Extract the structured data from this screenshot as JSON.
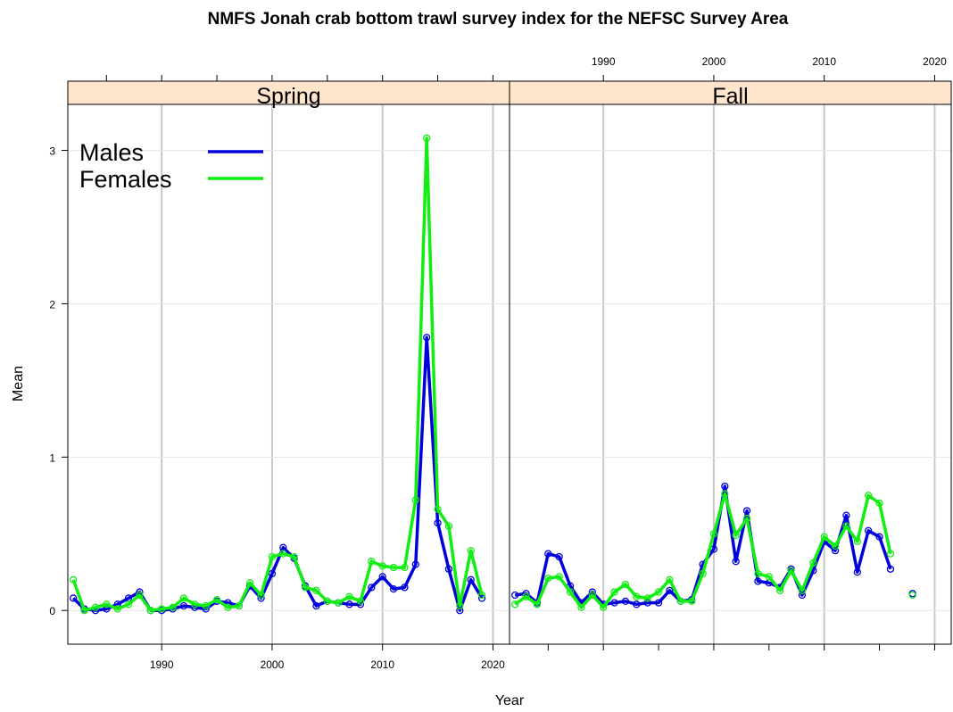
{
  "chart_data": {
    "type": "line",
    "title": "NMFS Jonah crab bottom trawl survey index for the NEFSC Survey Area",
    "xlabel": "Year",
    "ylabel": "Mean",
    "xlim": [
      1981.5,
      2021.5
    ],
    "ylim": [
      -0.22,
      3.3
    ],
    "x_ticks": [
      1990,
      2000,
      2010,
      2020
    ],
    "y_ticks": [
      0,
      1,
      2,
      3
    ],
    "grid": true,
    "legend_position": "top-left",
    "series_styles": [
      {
        "name": "Males",
        "color": "#0000dd"
      },
      {
        "name": "Females",
        "color": "#11ee11"
      }
    ],
    "panels": [
      {
        "label": "Spring",
        "x": [
          1982,
          1983,
          1984,
          1985,
          1986,
          1987,
          1988,
          1989,
          1990,
          1991,
          1992,
          1993,
          1994,
          1995,
          1996,
          1997,
          1998,
          1999,
          2000,
          2001,
          2002,
          2003,
          2004,
          2005,
          2006,
          2007,
          2008,
          2009,
          2010,
          2011,
          2012,
          2013,
          2014,
          2015,
          2016,
          2017,
          2018,
          2019
        ],
        "series": [
          {
            "name": "Males",
            "values": [
              0.08,
              0.01,
              0.0,
              0.01,
              0.04,
              0.08,
              0.12,
              0.0,
              0.0,
              0.01,
              0.03,
              0.02,
              0.01,
              0.06,
              0.05,
              0.03,
              0.16,
              0.08,
              0.24,
              0.41,
              0.34,
              0.16,
              0.03,
              0.06,
              0.05,
              0.04,
              0.04,
              0.15,
              0.22,
              0.14,
              0.15,
              0.3,
              1.78,
              0.57,
              0.27,
              0.0,
              0.2,
              0.08
            ]
          },
          {
            "name": "Females",
            "values": [
              0.2,
              0.0,
              0.02,
              0.04,
              0.01,
              0.04,
              0.1,
              0.0,
              0.01,
              0.02,
              0.08,
              0.04,
              0.03,
              0.07,
              0.02,
              0.03,
              0.18,
              0.1,
              0.35,
              0.37,
              0.35,
              0.15,
              0.13,
              0.06,
              0.05,
              0.09,
              0.06,
              0.32,
              0.29,
              0.28,
              0.28,
              0.72,
              3.08,
              0.66,
              0.55,
              0.03,
              0.39,
              0.1
            ]
          }
        ]
      },
      {
        "label": "Fall",
        "x": [
          1982,
          1983,
          1984,
          1985,
          1986,
          1987,
          1988,
          1989,
          1990,
          1991,
          1992,
          1993,
          1994,
          1995,
          1996,
          1997,
          1998,
          1999,
          2000,
          2001,
          2002,
          2003,
          2004,
          2005,
          2006,
          2007,
          2008,
          2009,
          2010,
          2011,
          2012,
          2013,
          2014,
          2015,
          2016,
          2018
        ],
        "series": [
          {
            "name": "Males",
            "values": [
              0.1,
              0.11,
              0.05,
              0.37,
              0.35,
              0.16,
              0.05,
              0.12,
              0.04,
              0.05,
              0.06,
              0.04,
              0.05,
              0.05,
              0.13,
              0.06,
              0.07,
              0.3,
              0.4,
              0.81,
              0.32,
              0.65,
              0.19,
              0.18,
              0.15,
              0.27,
              0.1,
              0.26,
              0.45,
              0.39,
              0.62,
              0.25,
              0.52,
              0.48,
              0.27,
              0.11
            ]
          },
          {
            "name": "Females",
            "values": [
              0.04,
              0.09,
              0.04,
              0.21,
              0.22,
              0.12,
              0.02,
              0.1,
              0.02,
              0.12,
              0.17,
              0.09,
              0.08,
              0.12,
              0.2,
              0.06,
              0.06,
              0.24,
              0.5,
              0.76,
              0.49,
              0.6,
              0.24,
              0.22,
              0.13,
              0.26,
              0.13,
              0.31,
              0.48,
              0.42,
              0.55,
              0.45,
              0.75,
              0.7,
              0.37,
              0.1
            ]
          }
        ]
      }
    ]
  }
}
